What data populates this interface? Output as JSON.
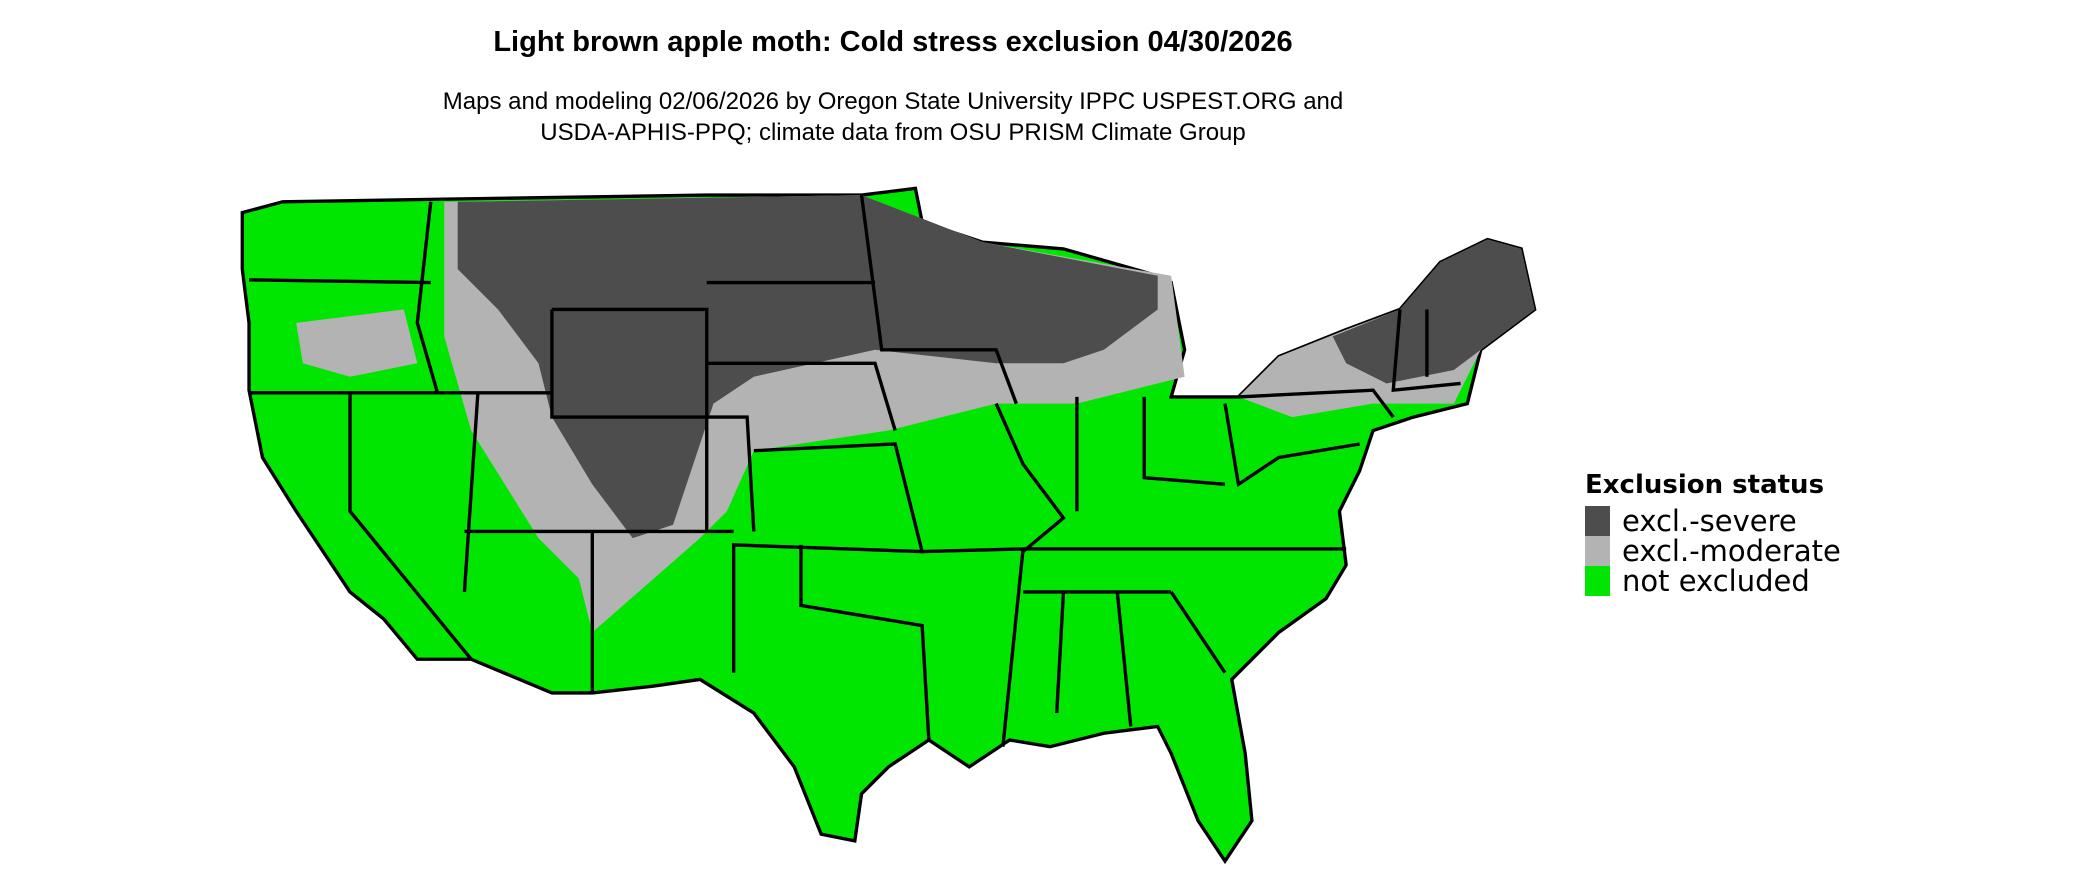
{
  "title": "Light brown apple moth: Cold stress exclusion 04/30/2026",
  "subtitle_line1": "Maps and modeling 02/06/2026 by Oregon State University IPPC USPEST.ORG and",
  "subtitle_line2": "USDA-APHIS-PPQ; climate data from OSU PRISM Climate Group",
  "legend": {
    "title": "Exclusion status",
    "items": [
      {
        "label": "excl.-severe",
        "color": "#4d4d4d"
      },
      {
        "label": "excl.-moderate",
        "color": "#b3b3b3"
      },
      {
        "label": "not excluded",
        "color": "#00e600"
      }
    ]
  }
}
